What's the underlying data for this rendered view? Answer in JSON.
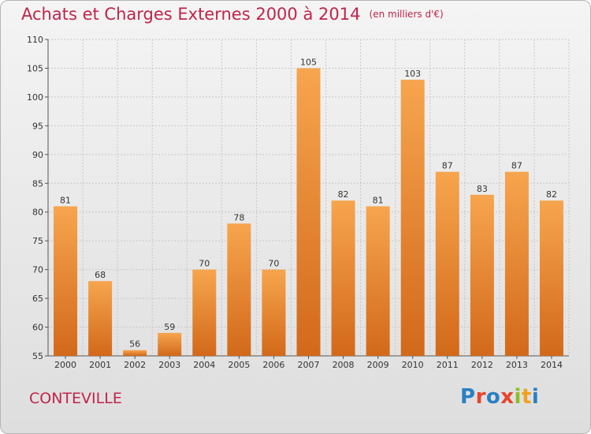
{
  "header": {
    "title": "Achats et Charges Externes 2000 à 2014",
    "unit": "(en milliers d'€)"
  },
  "footer": {
    "commune": "CONTEVILLE",
    "logo_text": "Proxiti"
  },
  "colors": {
    "title": "#c0244a",
    "bar_top": "#f7a54e",
    "bar_bottom": "#d2691a",
    "logo": [
      "#2a7fc4",
      "#e8432d",
      "#2a7fc4",
      "#e8432d",
      "#8cbf26",
      "#f2a11f",
      "#2a7fc4"
    ]
  },
  "chart_data": {
    "type": "bar",
    "title": "Achats et Charges Externes 2000 à 2014",
    "subtitle": "(en milliers d'€)",
    "categories": [
      "2000",
      "2001",
      "2002",
      "2003",
      "2004",
      "2005",
      "2006",
      "2007",
      "2008",
      "2009",
      "2010",
      "2011",
      "2012",
      "2013",
      "2014"
    ],
    "values": [
      81,
      68,
      56,
      59,
      70,
      78,
      70,
      105,
      82,
      81,
      103,
      87,
      83,
      87,
      82
    ],
    "ylim": [
      55,
      110
    ],
    "yticks": [
      55,
      60,
      65,
      70,
      75,
      80,
      85,
      90,
      95,
      100,
      105,
      110
    ],
    "grid": true,
    "data_labels": true
  }
}
